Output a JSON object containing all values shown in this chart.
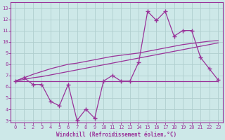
{
  "xlabel": "Windchill (Refroidissement éolien,°C)",
  "bg_color": "#cde8e8",
  "grid_color": "#b0cece",
  "line_color": "#993399",
  "x": [
    0,
    1,
    2,
    3,
    4,
    5,
    6,
    7,
    8,
    9,
    10,
    11,
    12,
    13,
    14,
    15,
    16,
    17,
    18,
    19,
    20,
    21,
    22,
    23
  ],
  "y_main": [
    6.5,
    6.8,
    6.2,
    6.2,
    4.7,
    4.3,
    6.2,
    3.0,
    4.0,
    3.2,
    6.5,
    7.0,
    6.5,
    6.5,
    8.2,
    12.7,
    11.9,
    12.7,
    10.5,
    11.0,
    11.0,
    8.6,
    7.6,
    6.6
  ],
  "y_line2": [
    6.5,
    6.5,
    6.5,
    6.5,
    6.5,
    6.5,
    6.5,
    6.5,
    6.5,
    6.5,
    6.5,
    6.5,
    6.5,
    6.5,
    6.5,
    6.5,
    6.5,
    6.5,
    6.5,
    6.5,
    6.5,
    6.5,
    6.5,
    6.5
  ],
  "y_line3": [
    6.5,
    6.65,
    6.8,
    6.9,
    7.05,
    7.2,
    7.35,
    7.5,
    7.65,
    7.8,
    7.95,
    8.1,
    8.25,
    8.4,
    8.55,
    8.7,
    8.85,
    9.0,
    9.15,
    9.3,
    9.45,
    9.6,
    9.75,
    9.9
  ],
  "y_line4": [
    6.5,
    6.8,
    7.1,
    7.35,
    7.6,
    7.8,
    8.0,
    8.1,
    8.25,
    8.4,
    8.55,
    8.7,
    8.8,
    8.9,
    9.0,
    9.15,
    9.3,
    9.45,
    9.6,
    9.75,
    9.85,
    9.95,
    10.05,
    10.1
  ],
  "xlim": [
    -0.5,
    23.5
  ],
  "ylim": [
    2.8,
    13.5
  ],
  "yticks": [
    3,
    4,
    5,
    6,
    7,
    8,
    9,
    10,
    11,
    12,
    13
  ],
  "xticks": [
    0,
    1,
    2,
    3,
    4,
    5,
    6,
    7,
    8,
    9,
    10,
    11,
    12,
    13,
    14,
    15,
    16,
    17,
    18,
    19,
    20,
    21,
    22,
    23
  ]
}
